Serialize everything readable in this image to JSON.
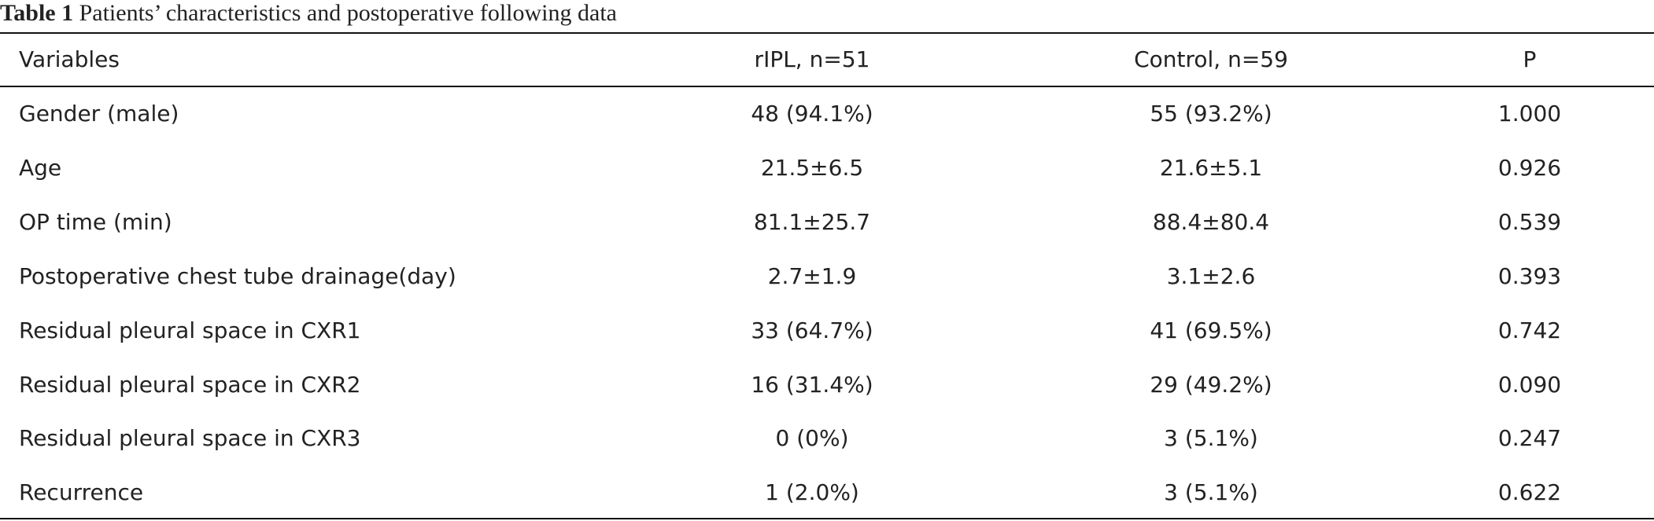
{
  "title": {
    "label": "Table 1",
    "text": "Patients’ characteristics and postoperative following data"
  },
  "table": {
    "headers": [
      "Variables",
      "rIPL, n=51",
      "Control, n=59",
      "P"
    ],
    "rows": [
      [
        "Gender (male)",
        "48 (94.1%)",
        "55 (93.2%)",
        "1.000"
      ],
      [
        "Age",
        "21.5±6.5",
        "21.6±5.1",
        "0.926"
      ],
      [
        "OP time (min)",
        "81.1±25.7",
        "88.4±80.4",
        "0.539"
      ],
      [
        "Postoperative chest tube drainage(day)",
        "2.7±1.9",
        "3.1±2.6",
        "0.393"
      ],
      [
        "Residual pleural space in CXR1",
        "33 (64.7%)",
        "41 (69.5%)",
        "0.742"
      ],
      [
        "Residual pleural space in CXR2",
        "16 (31.4%)",
        "29 (49.2%)",
        "0.090"
      ],
      [
        "Residual pleural space in CXR3",
        "0 (0%)",
        "3 (5.1%)",
        "0.247"
      ],
      [
        "Recurrence",
        "1 (2.0%)",
        "3 (5.1%)",
        "0.622"
      ]
    ]
  }
}
